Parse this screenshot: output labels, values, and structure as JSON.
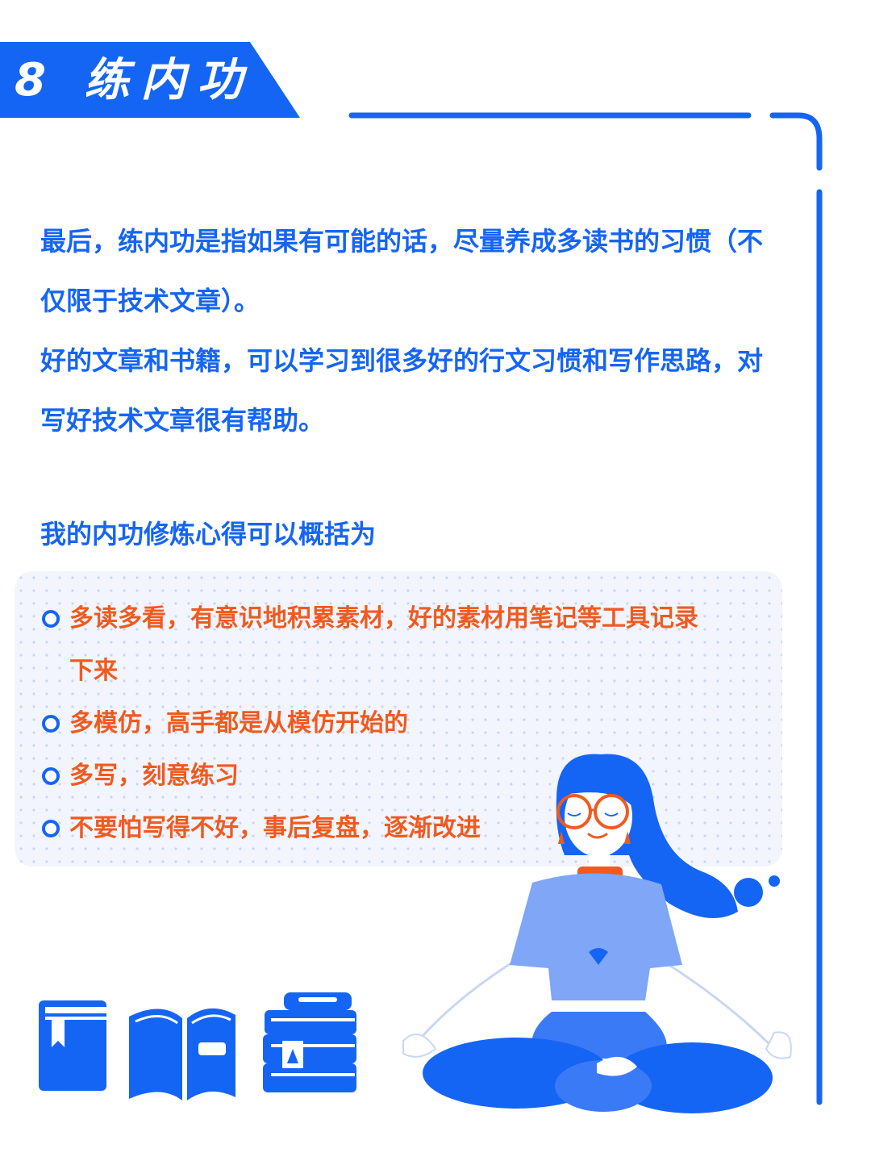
{
  "header": {
    "title": "8 练内功",
    "accent_color": "#1565f5"
  },
  "intro": {
    "paragraph_1": "最后，练内功是指如果有可能的话，尽量养成多读书的习惯（不仅限于技术文章）。",
    "paragraph_2": "好的文章和书籍，可以学习到很多好的行文习惯和写作思路，对写好技术文章很有帮助。"
  },
  "tips": {
    "heading": "我的内功修炼心得可以概括为",
    "bullet_color": "#1565f5",
    "text_color": "#f05a1f",
    "items": [
      "多读多看，有意识地积累素材，好的素材用笔记等工具记录下来",
      "多模仿，高手都是从模仿开始的",
      "多写，刻意练习",
      "不要怕写得不好，事后复盘，逐渐改进"
    ]
  },
  "illustrations": {
    "icons": [
      "closed-book-icon",
      "open-book-icon",
      "book-stack-icon"
    ],
    "figure": "meditating-girl-illustration"
  }
}
